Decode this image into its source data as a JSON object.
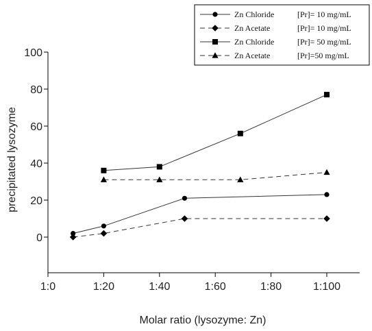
{
  "chart_data": {
    "type": "line",
    "xlabel": "Molar ratio (lysozyme: Zn)",
    "ylabel": "precipitated lysozyme",
    "x_tick_labels": [
      "1:0",
      "1:20",
      "1:40",
      "1:60",
      "1:80",
      "1:100"
    ],
    "x_tick_values": [
      0,
      20,
      40,
      60,
      80,
      100
    ],
    "xlim": [
      0,
      110
    ],
    "y_ticks": [
      0,
      20,
      40,
      60,
      80,
      100
    ],
    "ylim": [
      -20,
      100
    ],
    "grid": false,
    "legend_position": "top-right",
    "series": [
      {
        "name": "Zn Chloride",
        "condition": "[Pr]= 10 mg/mL",
        "marker": "circle",
        "line_style": "solid",
        "x": [
          9,
          20,
          49,
          100
        ],
        "y": [
          2,
          6,
          21,
          23
        ]
      },
      {
        "name": "Zn Acetate",
        "condition": "[Pr]= 10 mg/mL",
        "marker": "diamond",
        "line_style": "dashed",
        "x": [
          9,
          20,
          49,
          100
        ],
        "y": [
          0,
          2,
          10,
          10
        ]
      },
      {
        "name": "Zn Chloride",
        "condition": "[Pr]= 50 mg/mL",
        "marker": "square",
        "line_style": "solid",
        "x": [
          20,
          40,
          69,
          100
        ],
        "y": [
          36,
          38,
          56,
          77
        ]
      },
      {
        "name": "Zn Acetate",
        "condition": "[Pr]=50 mg/mL",
        "marker": "triangle",
        "line_style": "dashed",
        "x": [
          20,
          40,
          69,
          100
        ],
        "y": [
          31,
          31,
          31,
          35
        ]
      }
    ]
  }
}
